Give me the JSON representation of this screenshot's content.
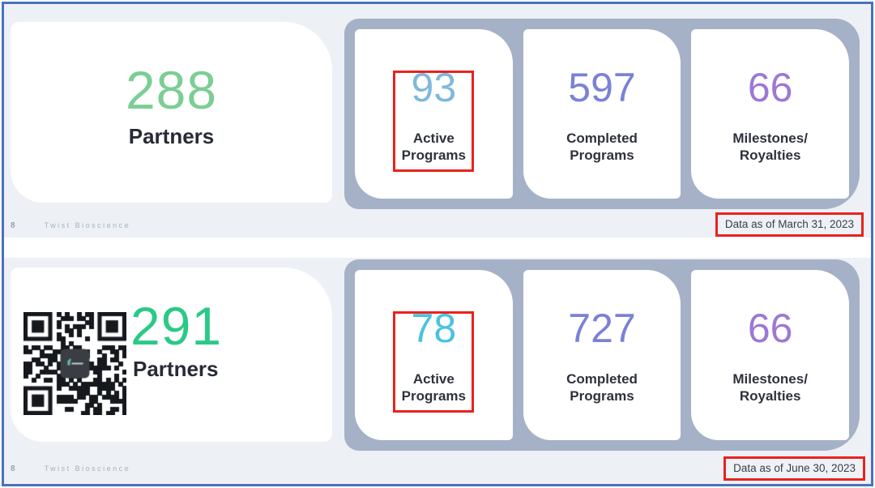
{
  "annotation_color": "#e8231e",
  "frame": {
    "border_color": "#4a72bd",
    "slide_background": "#edf0f5",
    "panel_background": "#a5b1c6",
    "card_background": "#ffffff"
  },
  "slides": [
    {
      "partners": {
        "value": "288",
        "label": "Partners",
        "value_color": "#7bce94"
      },
      "stats": [
        {
          "value": "93",
          "label_line1": "Active",
          "label_line2": "Programs",
          "value_color": "#7db9dc",
          "annotated": true
        },
        {
          "value": "597",
          "label_line1": "Completed",
          "label_line2": "Programs",
          "value_color": "#7a82d6",
          "annotated": false
        },
        {
          "value": "66",
          "label_line1": "Milestones/",
          "label_line2": "Royalties",
          "value_color": "#9d78d4",
          "annotated": false
        }
      ],
      "footer": {
        "page_number": "8",
        "brand": "Twist Bioscience"
      },
      "data_note": "Data as of March 31, 2023"
    },
    {
      "partners": {
        "value": "291",
        "label": "Partners",
        "value_color": "#2bc987"
      },
      "qr": {
        "icon": "qr-code"
      },
      "stats": [
        {
          "value": "78",
          "label_line1": "Active",
          "label_line2": "Programs",
          "value_color": "#49c2e1",
          "annotated": true
        },
        {
          "value": "727",
          "label_line1": "Completed",
          "label_line2": "Programs",
          "value_color": "#7a82d6",
          "annotated": false
        },
        {
          "value": "66",
          "label_line1": "Milestones/",
          "label_line2": "Royalties",
          "value_color": "#9d78d4",
          "annotated": false
        }
      ],
      "footer": {
        "page_number": "8",
        "brand": "Twist Bioscience"
      },
      "data_note": "Data as of June 30, 2023"
    }
  ]
}
